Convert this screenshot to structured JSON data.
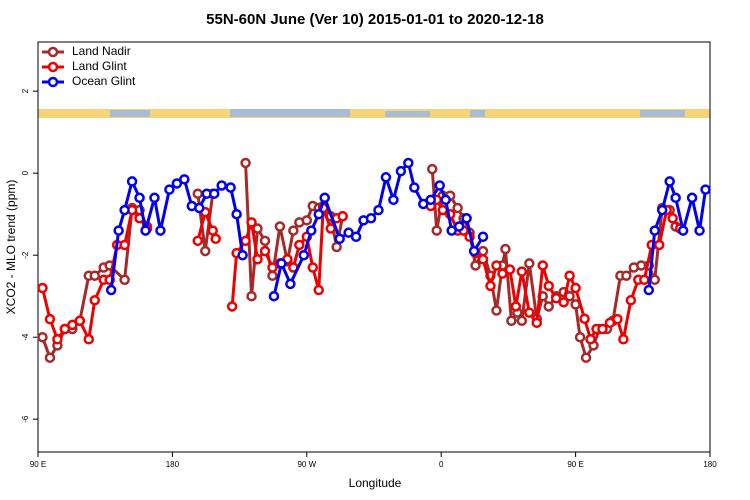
{
  "chart_data": {
    "type": "line",
    "title": "55N-60N June (Ver 10)   2015-01-01 to 2020-12-18",
    "x_label": "Longitude",
    "y_label": "XCO2 - MLO trend (ppm)",
    "xlim": [
      90,
      540
    ],
    "ylim": [
      -6.8,
      3.2
    ],
    "xticks": [
      {
        "value": 90,
        "label": "90 E"
      },
      180,
      {
        "value": 270,
        "label": "90 W"
      },
      {
        "value": 360,
        "label": "0"
      },
      {
        "value": 450,
        "label": "90 E"
      },
      {
        "value": 540,
        "label": "180"
      }
    ],
    "yticks": [
      2,
      0,
      -2,
      -4,
      -6
    ],
    "legend": "top-left",
    "series": [
      {
        "name": "Land Nadir",
        "color": "#a52a2a",
        "x": [
          93,
          98,
          103,
          108,
          113,
          118,
          124,
          128,
          134,
          138,
          148,
          153,
          158,
          163,
          null,
          197,
          202,
          207,
          null,
          229,
          233,
          237,
          242,
          247,
          252,
          257,
          261,
          265,
          270,
          274,
          278,
          281,
          286,
          290,
          294,
          null,
          354,
          357,
          361,
          366,
          371,
          375,
          379,
          383,
          388,
          393,
          397,
          401,
          403,
          407,
          411,
          414,
          419,
          424,
          428,
          432,
          437,
          442,
          446,
          450,
          453,
          457,
          462,
          466,
          471,
          475,
          480,
          484,
          489,
          494,
          499,
          503,
          508,
          513,
          517
        ],
        "values": [
          -4.0,
          -4.5,
          -4.2,
          -3.8,
          -3.8,
          -3.6,
          -2.5,
          -2.5,
          -2.3,
          -2.25,
          -2.6,
          -0.85,
          -0.9,
          -1.3,
          null,
          -0.5,
          -1.9,
          -0.5,
          null,
          0.25,
          -3.0,
          -1.35,
          -1.65,
          -2.5,
          -1.3,
          -2.15,
          -1.4,
          -1.2,
          -1.15,
          -0.8,
          -0.85,
          -0.8,
          -1.05,
          -1.8,
          -1.05,
          null,
          0.1,
          -1.4,
          -0.55,
          -0.55,
          -0.85,
          -1.1,
          -1.45,
          -2.25,
          -1.9,
          -2.5,
          -3.35,
          -2.25,
          -1.85,
          -3.6,
          -3.4,
          -3.6,
          -2.2,
          -3.55,
          -3.0,
          -3.25,
          -3.0,
          -2.9,
          -3.0,
          -3.2,
          -4.0,
          -4.5,
          -4.2,
          -3.8,
          -3.8,
          -3.6,
          -2.5,
          -2.5,
          -2.3,
          -2.25,
          -2.25,
          -2.6,
          -0.85,
          -0.9,
          -1.3
        ]
      },
      {
        "name": "Land Glint",
        "color": "#ee0000",
        "x": [
          93,
          98,
          103,
          108,
          113,
          118,
          124,
          128,
          134,
          138,
          143,
          148,
          153,
          158,
          163,
          null,
          197,
          202,
          207,
          209,
          null,
          220,
          223,
          229,
          233,
          237,
          242,
          247,
          252,
          257,
          261,
          265,
          270,
          274,
          278,
          281,
          286,
          290,
          294,
          null,
          353,
          357,
          361,
          366,
          371,
          375,
          379,
          383,
          388,
          393,
          397,
          401,
          406,
          410,
          414,
          419,
          424,
          428,
          432,
          437,
          442,
          446,
          450,
          456,
          460,
          464,
          468,
          473,
          478,
          482,
          487,
          492,
          496,
          501,
          506,
          511,
          515,
          520
        ],
        "values": [
          -2.8,
          -3.56,
          -4.05,
          -3.8,
          -3.7,
          -3.6,
          -4.05,
          -3.1,
          -2.6,
          -2.6,
          -1.75,
          -1.75,
          -0.9,
          -1.1,
          -1.35,
          null,
          -1.65,
          -0.95,
          -1.4,
          -1.6,
          null,
          -3.25,
          -1.95,
          -1.65,
          -1.2,
          -2.1,
          -1.9,
          -2.3,
          -2.2,
          -2.1,
          -2.3,
          -1.75,
          -1.55,
          -2.3,
          -2.85,
          -0.85,
          -1.35,
          -1.1,
          -1.05,
          null,
          -0.8,
          -0.65,
          -0.9,
          -1.0,
          -1.4,
          -1.4,
          -1.55,
          -1.95,
          -2.1,
          -2.75,
          -2.25,
          -2.45,
          -2.35,
          -3.25,
          -2.4,
          -3.4,
          -3.65,
          -2.25,
          -2.75,
          -3.05,
          -3.15,
          -2.5,
          -2.8,
          -3.55,
          -4.05,
          -3.8,
          -3.8,
          -3.65,
          -3.56,
          -4.05,
          -3.1,
          -2.6,
          -2.6,
          -1.75,
          -1.75,
          -0.9,
          -1.1,
          -1.35
        ]
      },
      {
        "name": "Ocean Glint",
        "color": "#0000ee",
        "x": [
          139,
          144,
          148,
          153,
          158,
          162,
          168,
          172,
          178,
          183,
          188,
          193,
          198,
          203,
          208,
          213,
          219,
          223,
          227,
          null,
          248,
          253,
          259,
          268,
          273,
          278,
          282,
          292,
          298,
          303,
          308,
          313,
          318,
          323,
          328,
          333,
          338,
          342,
          348,
          353,
          359,
          363,
          367,
          372,
          377,
          382,
          388,
          null,
          499,
          503,
          508,
          513,
          517,
          522,
          528,
          533,
          537
        ],
        "values": [
          -2.85,
          -1.4,
          -0.9,
          -0.2,
          -0.6,
          -1.4,
          -0.6,
          -1.4,
          -0.4,
          -0.25,
          -0.15,
          -0.8,
          -0.85,
          -0.5,
          -0.5,
          -0.3,
          -0.35,
          -1.0,
          -2.0,
          null,
          -3.0,
          -2.2,
          -2.7,
          -2.0,
          -1.4,
          -1.0,
          -0.6,
          -1.6,
          -1.45,
          -1.55,
          -1.15,
          -1.1,
          -0.9,
          -0.1,
          -0.65,
          0.05,
          0.25,
          -0.35,
          -0.75,
          -0.65,
          -0.3,
          -0.65,
          -1.4,
          -1.3,
          -1.1,
          -1.9,
          -1.55,
          null,
          -2.85,
          -1.4,
          -0.9,
          -0.2,
          -0.6,
          -1.4,
          -0.6,
          -1.4,
          -0.4
        ]
      }
    ]
  }
}
